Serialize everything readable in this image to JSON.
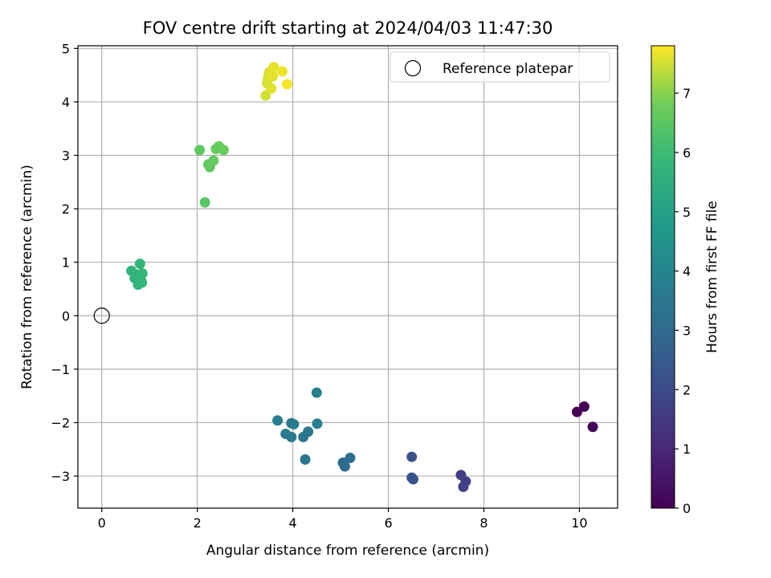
{
  "chart_data": {
    "type": "scatter",
    "title": "FOV centre drift starting at 2024/04/03 11:47:30",
    "xlabel": "Angular distance from reference (arcmin)",
    "ylabel": "Rotation from reference (arcmin)",
    "xlim": [
      -0.5,
      10.8
    ],
    "ylim": [
      -3.6,
      5.05
    ],
    "xticks": [
      0,
      2,
      4,
      6,
      8,
      10
    ],
    "yticks": [
      -3,
      -2,
      -1,
      0,
      1,
      2,
      3,
      4,
      5
    ],
    "grid": true,
    "legend": {
      "position": "top-right",
      "entries": [
        "Reference platepar"
      ]
    },
    "reference_point": {
      "x": 0,
      "y": 0,
      "label": "Reference platepar"
    },
    "colorbar": {
      "label": "Hours from first FF file",
      "range": [
        0,
        7.8
      ],
      "ticks": [
        0,
        1,
        2,
        3,
        4,
        5,
        6,
        7
      ],
      "colormap": "viridis"
    },
    "points": [
      {
        "x": 9.95,
        "y": -1.8,
        "c": 0.0
      },
      {
        "x": 10.1,
        "y": -1.7,
        "c": 0.05
      },
      {
        "x": 10.28,
        "y": -2.08,
        "c": 0.1
      },
      {
        "x": 7.52,
        "y": -2.98,
        "c": 1.6
      },
      {
        "x": 7.62,
        "y": -3.1,
        "c": 1.65
      },
      {
        "x": 7.57,
        "y": -3.2,
        "c": 1.7
      },
      {
        "x": 6.49,
        "y": -2.64,
        "c": 2.2
      },
      {
        "x": 6.49,
        "y": -3.03,
        "c": 2.25
      },
      {
        "x": 6.52,
        "y": -3.06,
        "c": 2.3
      },
      {
        "x": 5.05,
        "y": -2.75,
        "c": 3.0
      },
      {
        "x": 5.09,
        "y": -2.82,
        "c": 3.05
      },
      {
        "x": 5.2,
        "y": -2.66,
        "c": 3.1
      },
      {
        "x": 4.26,
        "y": -2.69,
        "c": 3.4
      },
      {
        "x": 4.22,
        "y": -2.27,
        "c": 3.45
      },
      {
        "x": 4.32,
        "y": -2.17,
        "c": 3.5
      },
      {
        "x": 3.97,
        "y": -2.27,
        "c": 3.55
      },
      {
        "x": 3.85,
        "y": -2.21,
        "c": 3.6
      },
      {
        "x": 3.97,
        "y": -2.01,
        "c": 3.65
      },
      {
        "x": 4.02,
        "y": -2.03,
        "c": 3.7
      },
      {
        "x": 3.68,
        "y": -1.96,
        "c": 3.75
      },
      {
        "x": 4.51,
        "y": -2.02,
        "c": 3.8
      },
      {
        "x": 4.5,
        "y": -1.44,
        "c": 3.85
      },
      {
        "x": 0.62,
        "y": 0.84,
        "c": 5.7
      },
      {
        "x": 0.69,
        "y": 0.7,
        "c": 5.72
      },
      {
        "x": 0.72,
        "y": 0.77,
        "c": 5.74
      },
      {
        "x": 0.76,
        "y": 0.58,
        "c": 5.76
      },
      {
        "x": 0.8,
        "y": 0.97,
        "c": 5.78
      },
      {
        "x": 0.82,
        "y": 0.66,
        "c": 5.8
      },
      {
        "x": 0.84,
        "y": 0.62,
        "c": 5.82
      },
      {
        "x": 0.85,
        "y": 0.79,
        "c": 5.84
      },
      {
        "x": 2.16,
        "y": 2.12,
        "c": 6.5
      },
      {
        "x": 2.05,
        "y": 3.1,
        "c": 6.55
      },
      {
        "x": 2.26,
        "y": 2.78,
        "c": 6.6
      },
      {
        "x": 2.23,
        "y": 2.83,
        "c": 6.62
      },
      {
        "x": 2.34,
        "y": 2.9,
        "c": 6.65
      },
      {
        "x": 2.39,
        "y": 3.12,
        "c": 6.68
      },
      {
        "x": 2.45,
        "y": 3.17,
        "c": 6.7
      },
      {
        "x": 2.55,
        "y": 3.1,
        "c": 6.72
      },
      {
        "x": 3.43,
        "y": 4.12,
        "c": 7.5
      },
      {
        "x": 3.46,
        "y": 4.35,
        "c": 7.52
      },
      {
        "x": 3.48,
        "y": 4.45,
        "c": 7.55
      },
      {
        "x": 3.5,
        "y": 4.55,
        "c": 7.57
      },
      {
        "x": 3.55,
        "y": 4.25,
        "c": 7.6
      },
      {
        "x": 3.6,
        "y": 4.65,
        "c": 7.65
      },
      {
        "x": 3.58,
        "y": 4.48,
        "c": 7.62
      },
      {
        "x": 3.78,
        "y": 4.57,
        "c": 7.7
      },
      {
        "x": 3.88,
        "y": 4.33,
        "c": 7.75
      }
    ]
  }
}
